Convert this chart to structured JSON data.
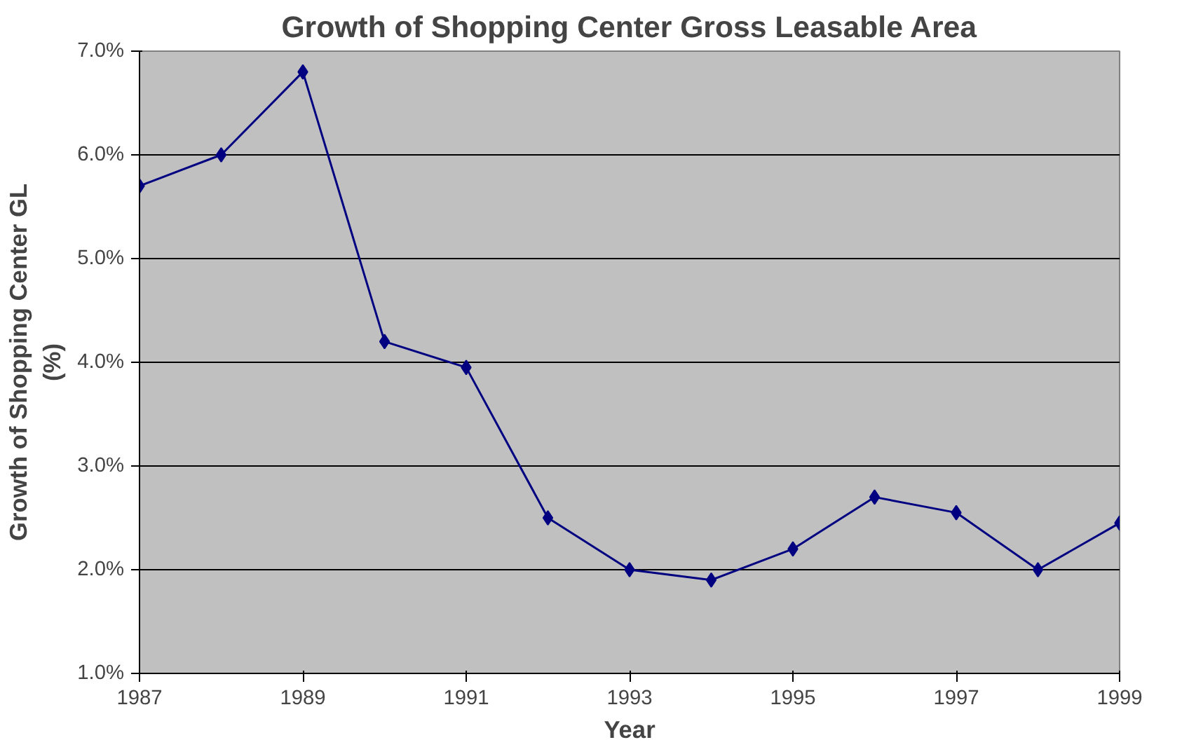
{
  "chart_data": {
    "type": "line",
    "title": "Growth of Shopping Center Gross Leasable Area",
    "xlabel": "Year",
    "ylabel": "Growth of Shopping Center GL\n(%)",
    "x": [
      1987,
      1988,
      1989,
      1990,
      1991,
      1992,
      1993,
      1994,
      1995,
      1996,
      1997,
      1998,
      1999
    ],
    "series": [
      {
        "color": "#000080",
        "values": [
          5.7,
          6.0,
          6.8,
          4.2,
          3.95,
          2.5,
          2.0,
          1.9,
          2.2,
          2.7,
          2.55,
          2.0,
          2.45
        ]
      }
    ],
    "xlim": [
      1987,
      1999
    ],
    "xticks": [
      1987,
      1989,
      1991,
      1993,
      1995,
      1997,
      1999
    ],
    "ylim": [
      1,
      7
    ],
    "yticks": [
      {
        "value": 1,
        "label": "1.0%"
      },
      {
        "value": 2,
        "label": "2.0%"
      },
      {
        "value": 3,
        "label": "3.0%"
      },
      {
        "value": 4,
        "label": "4.0%"
      },
      {
        "value": 5,
        "label": "5.0%"
      },
      {
        "value": 6,
        "label": "6.0%"
      },
      {
        "value": 7,
        "label": "7.0%"
      }
    ],
    "grid": "y",
    "marker": "diamond",
    "line_style": "solid"
  }
}
